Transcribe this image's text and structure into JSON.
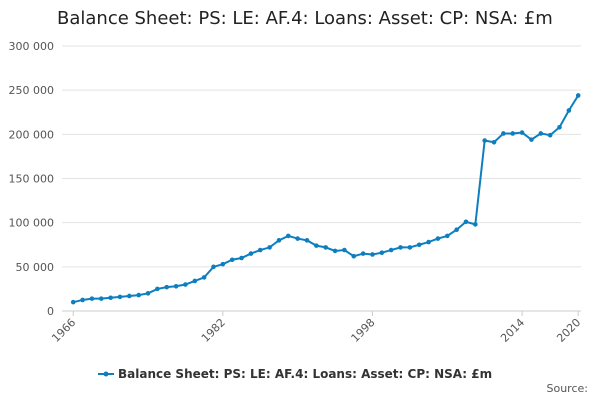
{
  "chart_data": {
    "type": "line",
    "title": "Balance Sheet: PS: LE: AF.4: Loans: Asset: CP: NSA: £m",
    "x": [
      1966,
      1967,
      1968,
      1969,
      1970,
      1971,
      1972,
      1973,
      1974,
      1975,
      1976,
      1977,
      1978,
      1979,
      1980,
      1981,
      1982,
      1983,
      1984,
      1985,
      1986,
      1987,
      1988,
      1989,
      1990,
      1991,
      1992,
      1993,
      1994,
      1995,
      1996,
      1997,
      1998,
      1999,
      2000,
      2001,
      2002,
      2003,
      2004,
      2005,
      2006,
      2007,
      2008,
      2009,
      2010,
      2011,
      2012,
      2013,
      2014,
      2015,
      2016,
      2017,
      2018,
      2019,
      2020
    ],
    "series": [
      {
        "name": "Balance Sheet: PS: LE: AF.4: Loans: Asset: CP: NSA: £m",
        "color": "#0d7fc0",
        "values": [
          10000,
          12500,
          14000,
          14000,
          15000,
          16000,
          17000,
          18000,
          20000,
          25000,
          27000,
          28000,
          30000,
          34000,
          38000,
          50000,
          53000,
          58000,
          60000,
          65000,
          69000,
          72000,
          80000,
          85000,
          82000,
          80000,
          74000,
          72000,
          68000,
          69000,
          62000,
          65000,
          64000,
          66000,
          69000,
          72000,
          72000,
          75000,
          78000,
          82000,
          85000,
          92000,
          101000,
          98000,
          193000,
          191000,
          201000,
          201000,
          202000,
          194000,
          201000,
          199000,
          208000,
          227000,
          244000
        ]
      }
    ],
    "xlim": [
      1964.8,
      2020.3
    ],
    "xticks": [
      1966,
      1982,
      1998,
      2014,
      2020
    ],
    "ylim": [
      0,
      300000
    ],
    "yticks": [
      0,
      {
        "value": 50000,
        "label": "50 000"
      },
      {
        "value": 100000,
        "label": "100 000"
      },
      {
        "value": 150000,
        "label": "150 000"
      },
      {
        "value": 200000,
        "label": "200 000"
      },
      {
        "value": 250000,
        "label": "250 000"
      },
      {
        "value": 300000,
        "label": "300 000"
      }
    ],
    "grid": true,
    "legend": "bottom",
    "source": "Source:"
  }
}
